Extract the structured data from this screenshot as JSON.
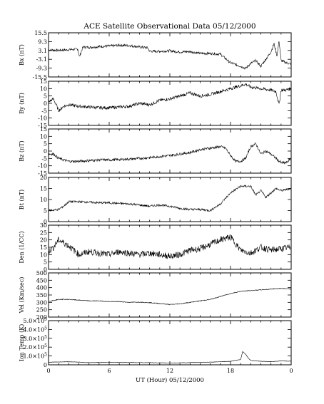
{
  "title": "ACE Satellite Observational Data  05/12/2000",
  "x_axis": {
    "label": "UT (Hour)  05/12/2000",
    "ticks": [
      "0",
      "6",
      "12",
      "18",
      "0"
    ]
  },
  "chart_data": [
    {
      "type": "line",
      "id": "bx",
      "ylabel": "Bx (nT)",
      "ylim": [
        -15.5,
        15.5
      ],
      "yticks": [
        {
          "v": 15.5,
          "l": "15.5"
        },
        {
          "v": 9.3,
          "l": "9.3"
        },
        {
          "v": 3.1,
          "l": "3.1"
        },
        {
          "v": -3.1,
          "l": "-3.1"
        },
        {
          "v": -9.3,
          "l": "-9.3"
        },
        {
          "v": -15.5,
          "l": "-15.5"
        }
      ],
      "series": [
        {
          "x": [
            0,
            1,
            2,
            2.9,
            3.05,
            3.4,
            4,
            5,
            6,
            7,
            8,
            9,
            9.8,
            10,
            11,
            12,
            13,
            14,
            15,
            16,
            17,
            17.6,
            17.8,
            18,
            19,
            19.5,
            20,
            20.5,
            21,
            21.5,
            22,
            22.3,
            22.6,
            22.8,
            23,
            23.5,
            24
          ],
          "y": [
            3.5,
            3.2,
            3.6,
            4.1,
            -1.5,
            5.5,
            5.2,
            5.8,
            6.2,
            6.8,
            6.5,
            5.5,
            5.0,
            2.5,
            2.5,
            2.8,
            2.0,
            2.3,
            1.0,
            1.0,
            0.5,
            -3.2,
            -4.5,
            -5.5,
            -8.0,
            -9.5,
            -6.0,
            -4.0,
            -8.0,
            -3.0,
            2.0,
            8.0,
            -1.0,
            10.0,
            -4.0,
            -5.5,
            -6.5
          ]
        }
      ]
    },
    {
      "type": "line",
      "id": "by",
      "ylabel": "By (nT)",
      "ylim": [
        -15,
        15
      ],
      "yticks": [
        {
          "v": 15,
          "l": "15"
        },
        {
          "v": 10,
          "l": "10"
        },
        {
          "v": 5,
          "l": "5"
        },
        {
          "v": 0,
          "l": "0"
        },
        {
          "v": -5,
          "l": "-5"
        },
        {
          "v": -10,
          "l": "-10"
        },
        {
          "v": -15,
          "l": "-15"
        }
      ],
      "series": [
        {
          "x": [
            0,
            0.5,
            1,
            1.5,
            2,
            3,
            4,
            5,
            6,
            7,
            8,
            9,
            10,
            11,
            12,
            13,
            14,
            15,
            16,
            17,
            18,
            19,
            19.5,
            20,
            21,
            22,
            22.5,
            22.8,
            23,
            23.5,
            24
          ],
          "y": [
            1,
            3,
            -5,
            -2,
            -1,
            -2,
            -2.5,
            -3,
            -3,
            -2.5,
            -2,
            0,
            -1,
            2,
            3,
            5,
            7,
            5,
            6,
            8,
            10,
            12,
            13,
            11,
            10,
            9,
            8,
            -1,
            9,
            9,
            10
          ]
        }
      ]
    },
    {
      "type": "line",
      "id": "bz",
      "ylabel": "Bz (nT)",
      "ylim": [
        -15,
        15
      ],
      "yticks": [
        {
          "v": 15,
          "l": "15"
        },
        {
          "v": 10,
          "l": "10"
        },
        {
          "v": 5,
          "l": "5"
        },
        {
          "v": 0,
          "l": "0"
        },
        {
          "v": -5,
          "l": "-5"
        },
        {
          "v": -10,
          "l": "-10"
        },
        {
          "v": -15,
          "l": "-15"
        }
      ],
      "series": [
        {
          "x": [
            0,
            0.5,
            1,
            2,
            3,
            4,
            5,
            6,
            8,
            10,
            12,
            13,
            14,
            15,
            16,
            17,
            17.5,
            18,
            18.5,
            19,
            19.5,
            20,
            20.5,
            21,
            21.5,
            22,
            22.5,
            23,
            23.5,
            24
          ],
          "y": [
            -2,
            -2,
            -5,
            -7,
            -7,
            -6.5,
            -6,
            -6,
            -5.5,
            -4.5,
            -3,
            -2,
            -1,
            1,
            2,
            3,
            2,
            -3,
            -7,
            -7,
            -5,
            3,
            5,
            -2,
            0,
            -2,
            -5,
            -8,
            -8,
            -5
          ]
        }
      ]
    },
    {
      "type": "line",
      "id": "bt",
      "ylabel": "Bt (nT)",
      "ylim": [
        0,
        20
      ],
      "yticks": [
        {
          "v": 20,
          "l": "20"
        },
        {
          "v": 15,
          "l": "15"
        },
        {
          "v": 10,
          "l": "10"
        },
        {
          "v": 5,
          "l": "5"
        },
        {
          "v": 0,
          "l": "0"
        }
      ],
      "series": [
        {
          "x": [
            0,
            1,
            1.5,
            2,
            3,
            4,
            5,
            6,
            7,
            8,
            9,
            10,
            11,
            12,
            13,
            14,
            15,
            16,
            17,
            18,
            19,
            20,
            20.5,
            21,
            21.5,
            22,
            22.5,
            23,
            24
          ],
          "y": [
            5,
            5.5,
            7,
            9,
            9,
            8.8,
            8.5,
            8.5,
            8.2,
            8,
            7.5,
            7,
            7.5,
            7,
            6,
            5.5,
            5.5,
            5,
            8,
            13,
            16,
            16,
            12,
            14,
            11,
            13,
            15,
            14,
            15
          ]
        }
      ]
    },
    {
      "type": "line",
      "id": "den",
      "ylabel": "Den (1/CC)",
      "ylim": [
        0,
        30
      ],
      "yticks": [
        {
          "v": 30,
          "l": "30"
        },
        {
          "v": 25,
          "l": "25"
        },
        {
          "v": 20,
          "l": "20"
        },
        {
          "v": 15,
          "l": "15"
        },
        {
          "v": 10,
          "l": "10"
        },
        {
          "v": 5,
          "l": "5"
        },
        {
          "v": 0,
          "l": "0"
        }
      ],
      "series": [
        {
          "x": [
            0,
            0.5,
            1,
            2,
            3,
            4,
            5,
            6,
            7,
            8,
            9,
            10,
            11,
            12,
            13,
            14,
            15,
            16,
            17,
            18,
            19,
            20,
            21,
            22,
            23,
            24
          ],
          "y": [
            12,
            15,
            20,
            16,
            10,
            12,
            11,
            10,
            12,
            11,
            10,
            11,
            10,
            9,
            10,
            13,
            14,
            17,
            20,
            22,
            13,
            11,
            15,
            13,
            14,
            15
          ]
        }
      ]
    },
    {
      "type": "line",
      "id": "vel",
      "ylabel": "Vel (Km/sec)",
      "ylim": [
        200,
        500
      ],
      "yticks": [
        {
          "v": 500,
          "l": "500"
        },
        {
          "v": 450,
          "l": "450"
        },
        {
          "v": 400,
          "l": "400"
        },
        {
          "v": 350,
          "l": "350"
        },
        {
          "v": 300,
          "l": "300"
        },
        {
          "v": 250,
          "l": "250"
        },
        {
          "v": 200,
          "l": "200"
        }
      ],
      "series": [
        {
          "x": [
            0,
            1,
            2,
            3,
            4,
            5,
            6,
            7,
            8,
            9,
            10,
            11,
            12,
            13,
            14,
            15,
            16,
            17,
            18,
            19,
            20,
            21,
            22,
            23,
            24
          ],
          "y": [
            305,
            320,
            320,
            315,
            310,
            310,
            305,
            305,
            300,
            302,
            298,
            292,
            285,
            290,
            300,
            310,
            320,
            340,
            360,
            375,
            380,
            385,
            390,
            395,
            390
          ]
        }
      ]
    },
    {
      "type": "line",
      "id": "temp",
      "ylabel": "Ion Temp (K)",
      "ylim": [
        0,
        500000
      ],
      "yticks": [
        {
          "v": 500000,
          "m": "5.0"
        },
        {
          "v": 400000,
          "m": "4.0"
        },
        {
          "v": 300000,
          "m": "3.0"
        },
        {
          "v": 200000,
          "m": "2.0"
        },
        {
          "v": 100000,
          "m": "1.0"
        },
        {
          "v": 0,
          "m": "0"
        }
      ],
      "series": [
        {
          "x": [
            0,
            2,
            4,
            6,
            8,
            10,
            12,
            14,
            16,
            17,
            18,
            19,
            19.2,
            19.5,
            19.8,
            20,
            21,
            22,
            23,
            24
          ],
          "y": [
            30000,
            35000,
            25000,
            28000,
            26000,
            25000,
            20000,
            25000,
            30000,
            35000,
            40000,
            60000,
            150000,
            120000,
            70000,
            50000,
            40000,
            35000,
            45000,
            40000
          ]
        }
      ]
    }
  ]
}
